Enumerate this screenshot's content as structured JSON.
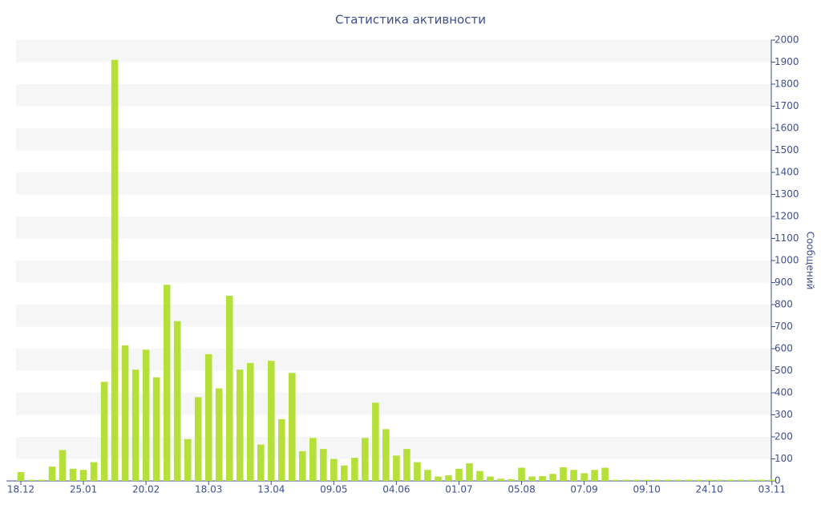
{
  "chart_data": {
    "type": "bar",
    "title": "Статистика активности",
    "y_label": "Сообщений",
    "categories": [
      "18.12",
      null,
      null,
      null,
      null,
      null,
      "25.01",
      null,
      null,
      null,
      null,
      null,
      "20.02",
      null,
      null,
      null,
      null,
      null,
      "18.03",
      null,
      null,
      null,
      null,
      null,
      "13.04",
      null,
      null,
      null,
      null,
      null,
      "09.05",
      null,
      null,
      null,
      null,
      null,
      "04.06",
      null,
      null,
      null,
      null,
      null,
      "01.07",
      null,
      null,
      null,
      null,
      null,
      "05.08",
      null,
      null,
      null,
      null,
      null,
      "07.09",
      null,
      null,
      null,
      null,
      null,
      "09.10",
      null,
      null,
      null,
      null,
      null,
      "24.10",
      null,
      null,
      null,
      null,
      null,
      "03.11"
    ],
    "values": [
      40,
      5,
      5,
      65,
      140,
      55,
      50,
      85,
      450,
      1910,
      615,
      505,
      595,
      470,
      890,
      725,
      190,
      380,
      575,
      420,
      840,
      505,
      535,
      165,
      545,
      280,
      490,
      135,
      195,
      145,
      100,
      70,
      105,
      195,
      355,
      235,
      115,
      145,
      85,
      50,
      20,
      25,
      55,
      80,
      45,
      20,
      10,
      8,
      60,
      20,
      22,
      32,
      62,
      50,
      35,
      50,
      60,
      5,
      5,
      5,
      5,
      5,
      5,
      5,
      5,
      5,
      5,
      5,
      5,
      5,
      5,
      5,
      5
    ],
    "color": "#b5e03a",
    "ylim": [
      0,
      2000
    ],
    "yticks": [
      0,
      100,
      200,
      300,
      400,
      500,
      600,
      700,
      800,
      900,
      1000,
      1100,
      1200,
      1300,
      1400,
      1500,
      1600,
      1700,
      1800,
      1900,
      2000
    ],
    "y_axis_side": "right",
    "grid_bands": true
  }
}
